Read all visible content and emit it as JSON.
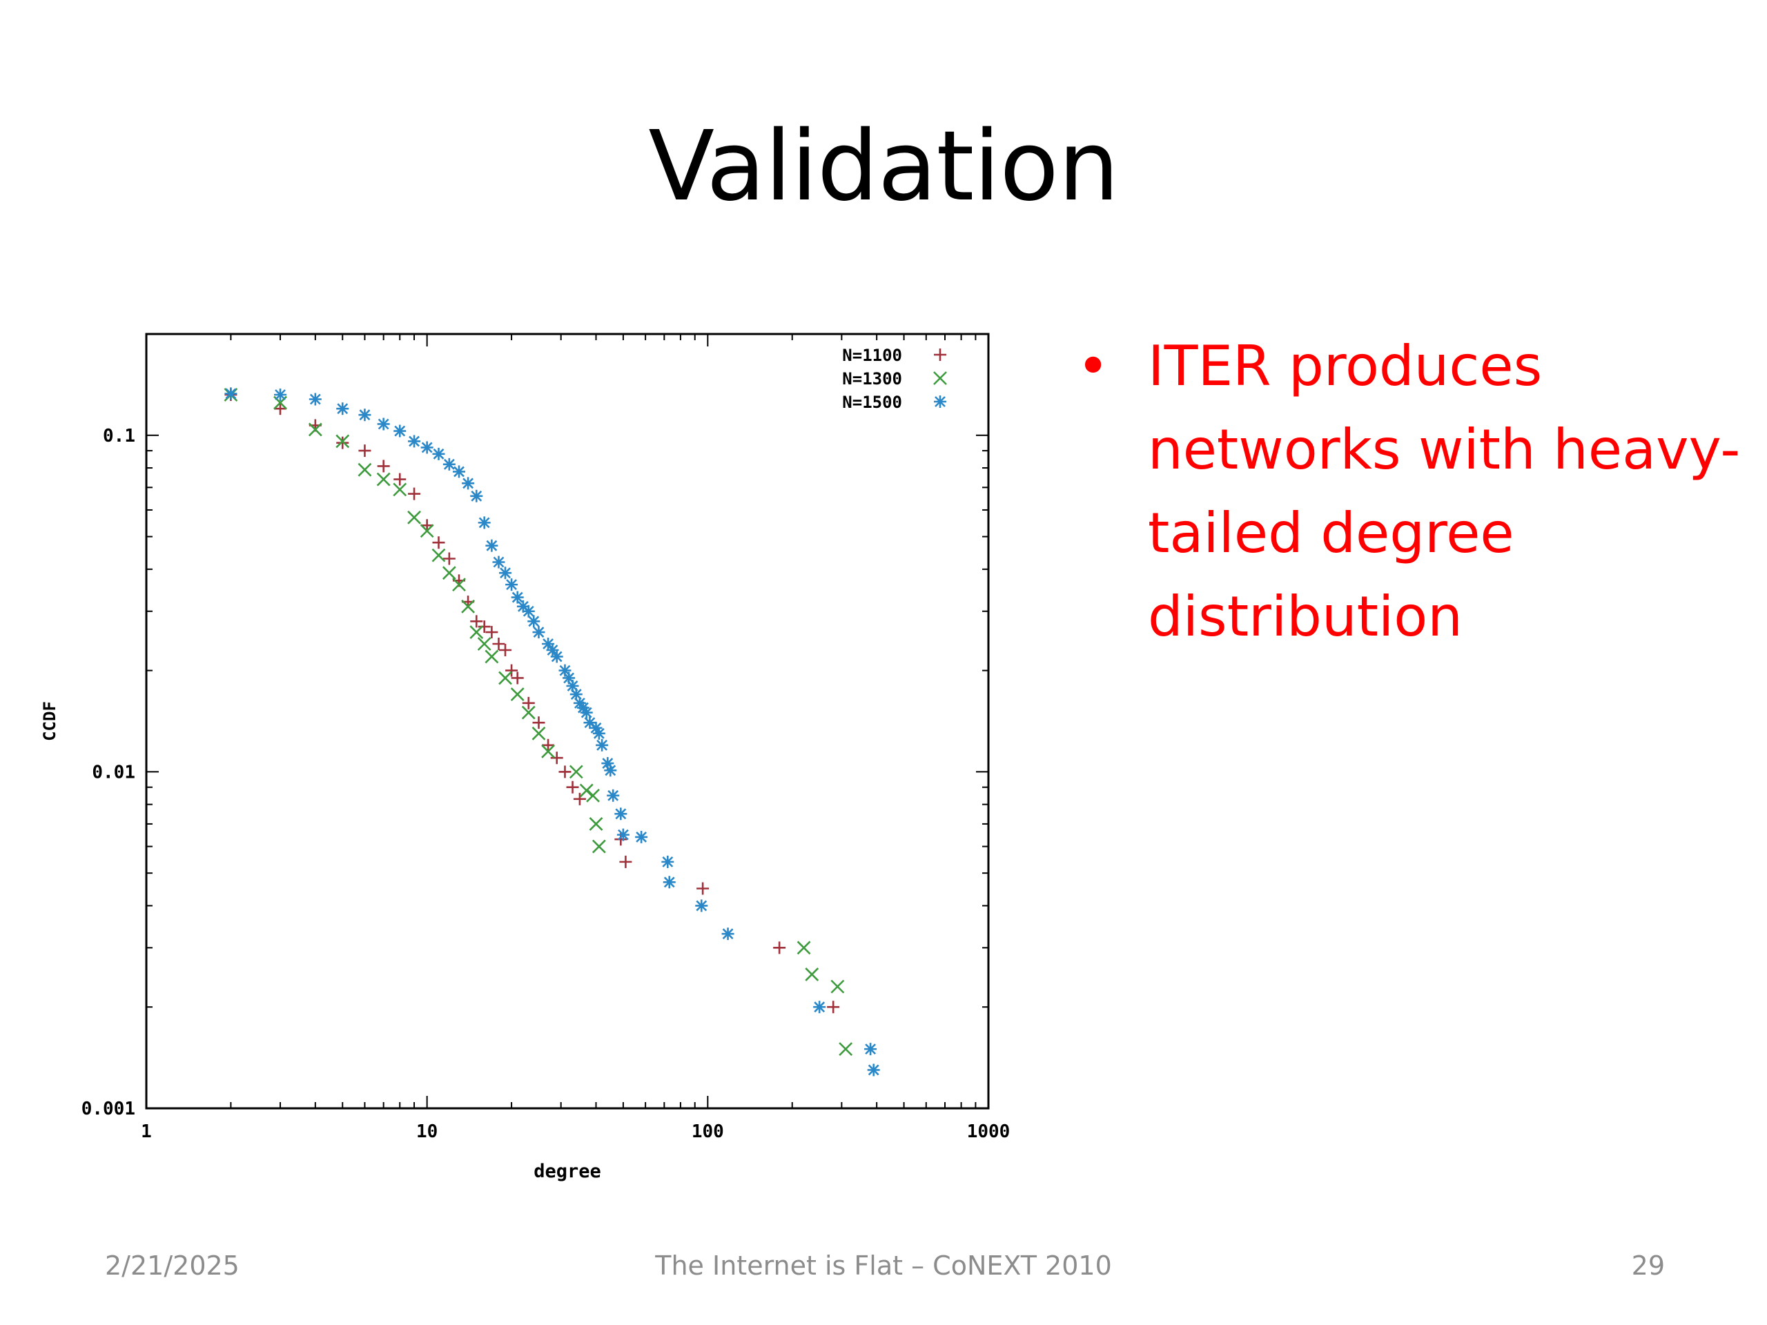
{
  "slide": {
    "title": "Validation",
    "bullet": "ITER produces networks with heavy-tailed degree distribution",
    "bullet_color": "#ff0000",
    "footer_date": "2/21/2025",
    "footer_center": "The Internet is Flat – CoNEXT 2010",
    "page_number": "29"
  },
  "chart_data": {
    "type": "scatter",
    "x_scale": "log",
    "y_scale": "log",
    "xlim": [
      1,
      1000
    ],
    "ylim": [
      0.001,
      0.2
    ],
    "xlabel": "degree",
    "ylabel": "CCDF",
    "x_ticks": [
      {
        "value": 1,
        "label": "1"
      },
      {
        "value": 10,
        "label": "10"
      },
      {
        "value": 100,
        "label": "100"
      },
      {
        "value": 1000,
        "label": "1000"
      }
    ],
    "y_ticks": [
      {
        "value": 0.1,
        "label": "0.1"
      },
      {
        "value": 0.01,
        "label": "0.01"
      },
      {
        "value": 0.001,
        "label": "0.001"
      }
    ],
    "legend_position": "top-right",
    "series": [
      {
        "name": "N=1100",
        "marker": "plus",
        "color": "#a0303a",
        "points": [
          [
            2,
            0.132
          ],
          [
            3,
            0.12
          ],
          [
            4,
            0.107
          ],
          [
            5,
            0.095
          ],
          [
            6,
            0.09
          ],
          [
            7,
            0.081
          ],
          [
            8,
            0.074
          ],
          [
            9,
            0.067
          ],
          [
            10,
            0.054
          ],
          [
            11,
            0.048
          ],
          [
            12,
            0.043
          ],
          [
            13,
            0.037
          ],
          [
            14,
            0.032
          ],
          [
            15,
            0.028
          ],
          [
            16,
            0.027
          ],
          [
            17,
            0.026
          ],
          [
            18,
            0.024
          ],
          [
            19,
            0.023
          ],
          [
            20,
            0.02
          ],
          [
            21,
            0.019
          ],
          [
            23,
            0.016
          ],
          [
            25,
            0.014
          ],
          [
            27,
            0.012
          ],
          [
            29,
            0.011
          ],
          [
            31,
            0.01
          ],
          [
            33,
            0.009
          ],
          [
            35,
            0.0083
          ],
          [
            49,
            0.0063
          ],
          [
            51,
            0.0054
          ],
          [
            96,
            0.0045
          ],
          [
            180,
            0.003
          ],
          [
            280,
            0.002
          ]
        ]
      },
      {
        "name": "N=1300",
        "marker": "x",
        "color": "#3d9a3d",
        "points": [
          [
            2,
            0.132
          ],
          [
            3,
            0.125
          ],
          [
            4,
            0.104
          ],
          [
            5,
            0.096
          ],
          [
            6,
            0.079
          ],
          [
            7,
            0.074
          ],
          [
            8,
            0.069
          ],
          [
            9,
            0.057
          ],
          [
            10,
            0.052
          ],
          [
            11,
            0.044
          ],
          [
            12,
            0.039
          ],
          [
            13,
            0.036
          ],
          [
            14,
            0.031
          ],
          [
            15,
            0.026
          ],
          [
            16,
            0.024
          ],
          [
            17,
            0.022
          ],
          [
            19,
            0.019
          ],
          [
            21,
            0.017
          ],
          [
            23,
            0.015
          ],
          [
            25,
            0.013
          ],
          [
            27,
            0.0115
          ],
          [
            34,
            0.01
          ],
          [
            37,
            0.0088
          ],
          [
            39,
            0.0085
          ],
          [
            40,
            0.007
          ],
          [
            41,
            0.006
          ],
          [
            220,
            0.003
          ],
          [
            235,
            0.0025
          ],
          [
            290,
            0.0023
          ],
          [
            310,
            0.0015
          ]
        ]
      },
      {
        "name": "N=1500",
        "marker": "star",
        "color": "#2a88c8",
        "points": [
          [
            2,
            0.133
          ],
          [
            3,
            0.132
          ],
          [
            4,
            0.128
          ],
          [
            5,
            0.12
          ],
          [
            6,
            0.115
          ],
          [
            7,
            0.108
          ],
          [
            8,
            0.103
          ],
          [
            9,
            0.096
          ],
          [
            10,
            0.092
          ],
          [
            11,
            0.088
          ],
          [
            12,
            0.082
          ],
          [
            13,
            0.078
          ],
          [
            14,
            0.072
          ],
          [
            15,
            0.066
          ],
          [
            16,
            0.055
          ],
          [
            17,
            0.047
          ],
          [
            18,
            0.042
          ],
          [
            19,
            0.039
          ],
          [
            20,
            0.036
          ],
          [
            21,
            0.033
          ],
          [
            22,
            0.031
          ],
          [
            23,
            0.03
          ],
          [
            24,
            0.028
          ],
          [
            25,
            0.026
          ],
          [
            27,
            0.024
          ],
          [
            28,
            0.023
          ],
          [
            29,
            0.022
          ],
          [
            31,
            0.02
          ],
          [
            32,
            0.019
          ],
          [
            33,
            0.018
          ],
          [
            34,
            0.017
          ],
          [
            35,
            0.016
          ],
          [
            36,
            0.0155
          ],
          [
            37,
            0.015
          ],
          [
            38,
            0.014
          ],
          [
            40,
            0.0135
          ],
          [
            41,
            0.013
          ],
          [
            42,
            0.012
          ],
          [
            44,
            0.0106
          ],
          [
            45,
            0.0101
          ],
          [
            46,
            0.0085
          ],
          [
            49,
            0.0075
          ],
          [
            50,
            0.0065
          ],
          [
            58,
            0.0064
          ],
          [
            72,
            0.0054
          ],
          [
            73,
            0.0047
          ],
          [
            95,
            0.004
          ],
          [
            118,
            0.0033
          ],
          [
            250,
            0.002
          ],
          [
            380,
            0.0015
          ],
          [
            390,
            0.0013
          ]
        ]
      }
    ]
  }
}
